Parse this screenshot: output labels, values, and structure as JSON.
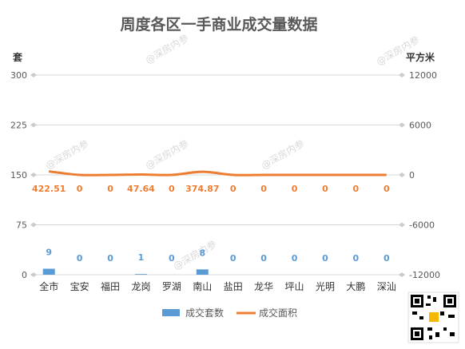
{
  "chart_data": {
    "type": "bar+line",
    "title": "周度各区一手商业成交量数据",
    "categories": [
      "全市",
      "宝安",
      "福田",
      "龙岗",
      "罗湖",
      "南山",
      "盐田",
      "龙华",
      "坪山",
      "光明",
      "大鹏",
      "深汕"
    ],
    "series": [
      {
        "name": "成交套数",
        "type": "bar",
        "axis": "left",
        "color": "#5B9BD5",
        "values": [
          9,
          0,
          0,
          1,
          0,
          8,
          0,
          0,
          0,
          0,
          0,
          0
        ],
        "labels": [
          "9",
          "0",
          "0",
          "1",
          "0",
          "8",
          "0",
          "0",
          "0",
          "0",
          "0",
          "0"
        ]
      },
      {
        "name": "成交面积",
        "type": "line",
        "axis": "right",
        "color": "#ED7D31",
        "values": [
          422.51,
          0,
          0,
          47.64,
          0,
          374.87,
          0,
          0,
          0,
          0,
          0,
          0
        ],
        "labels": [
          "422.51",
          "0",
          "0",
          "47.64",
          "0",
          "374.87",
          "0",
          "0",
          "0",
          "0",
          "0",
          "0"
        ]
      }
    ],
    "y_left": {
      "unit": "套",
      "ticks": [
        "300",
        "225",
        "150",
        "75",
        "0"
      ],
      "min": 0,
      "max": 300
    },
    "y_right": {
      "unit": "平方米",
      "ticks": [
        "12000",
        "6000",
        "0",
        "-6000",
        "-12000"
      ],
      "min": -12000,
      "max": 12000
    },
    "grid": true,
    "legend_position": "bottom"
  },
  "watermark": "@深房内参"
}
